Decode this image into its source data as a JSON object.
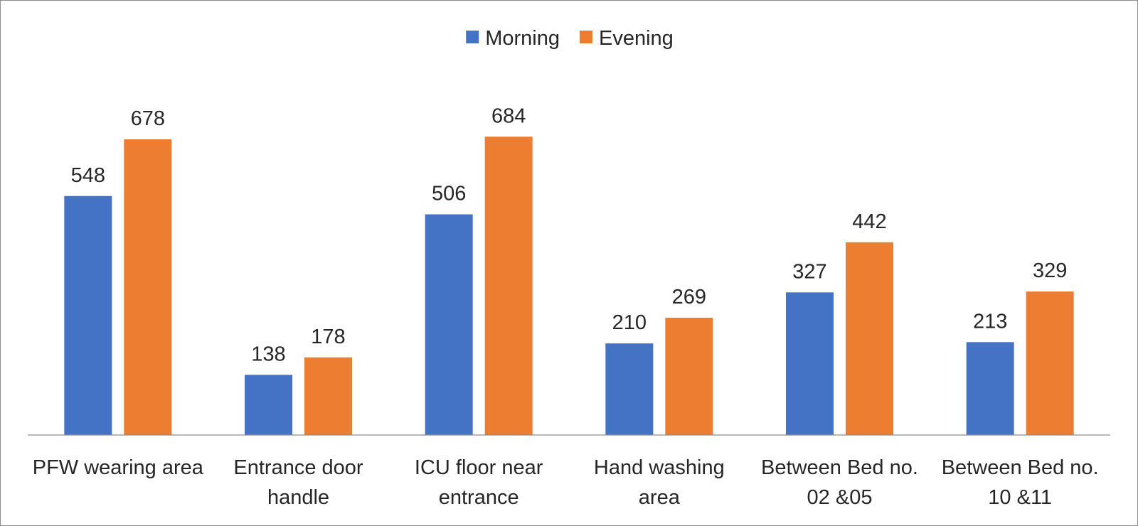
{
  "chart_data": {
    "type": "bar",
    "title": "",
    "xlabel": "",
    "ylabel": "",
    "categories": [
      [
        "PFW wearing area"
      ],
      [
        "Entrance door",
        "handle"
      ],
      [
        "ICU floor near",
        "entrance"
      ],
      [
        "Hand washing",
        "area"
      ],
      [
        "Between Bed no.",
        "02 &05"
      ],
      [
        "Between Bed no.",
        "10 &11"
      ]
    ],
    "series": [
      {
        "name": "Morning",
        "color": "#4472C4",
        "values": [
          548,
          138,
          506,
          210,
          327,
          213
        ]
      },
      {
        "name": "Evening",
        "color": "#ED7D31",
        "values": [
          678,
          178,
          684,
          269,
          442,
          329
        ]
      }
    ],
    "ylim": [
      0,
      800
    ],
    "grid": false,
    "legend_position": "top-center",
    "data_labels": true
  }
}
